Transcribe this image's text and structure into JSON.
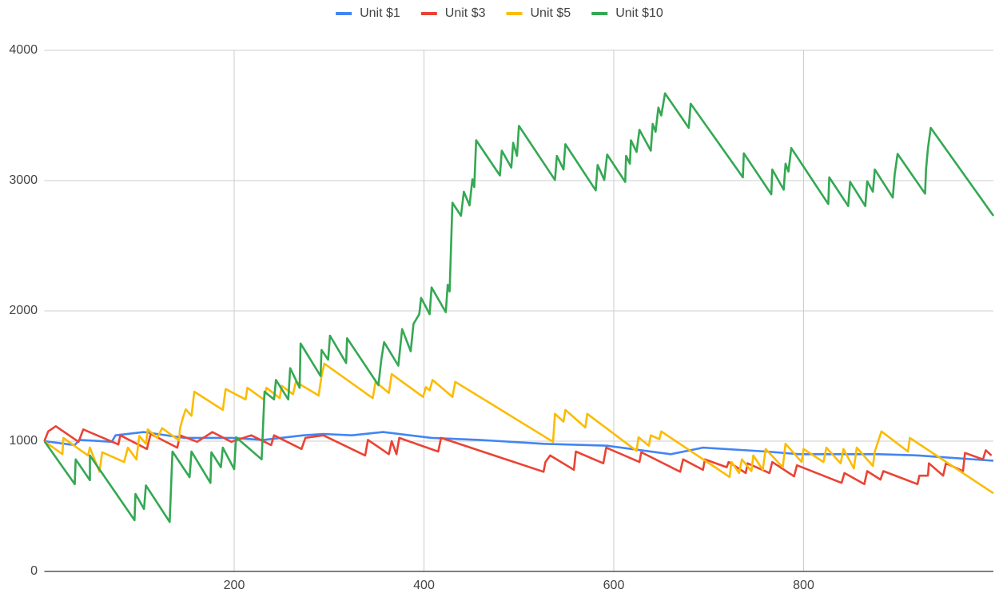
{
  "chart_data": {
    "type": "line",
    "legend": "top",
    "grid": true,
    "xlim": [
      0,
      1000
    ],
    "xticks": [
      200,
      400,
      600,
      800
    ],
    "ylim": [
      0,
      4000
    ],
    "yticks": [
      0,
      1000,
      2000,
      3000,
      4000
    ],
    "series": [
      {
        "name": "Unit $1",
        "color": "#4285f4",
        "x": [
          0,
          32,
          37,
          71,
          75,
          105,
          147,
          172,
          197,
          231,
          273,
          294,
          324,
          357,
          408,
          458,
          526,
          593,
          660,
          694,
          761,
          795,
          879,
          921,
          1000
        ],
        "values": [
          1000,
          970,
          1010,
          995,
          1045,
          1070,
          1025,
          1025,
          1025,
          1010,
          1045,
          1055,
          1045,
          1070,
          1025,
          1010,
          980,
          965,
          900,
          950,
          920,
          900,
          900,
          890,
          850
        ]
      },
      {
        "name": "Unit $3",
        "color": "#ea4335",
        "x": [
          0,
          4,
          12,
          36,
          41,
          78,
          80,
          108,
          112,
          140,
          143,
          161,
          177,
          197,
          218,
          239,
          242,
          271,
          275,
          294,
          338,
          341,
          363,
          366,
          371,
          374,
          415,
          418,
          526,
          528,
          533,
          558,
          560,
          589,
          592,
          627,
          629,
          670,
          673,
          694,
          696,
          719,
          721,
          739,
          741,
          764,
          767,
          790,
          793,
          840,
          843,
          864,
          867,
          881,
          884,
          920,
          922,
          931,
          932,
          947,
          950,
          968,
          970,
          989,
          992,
          998
        ],
        "values": [
          1000,
          1075,
          1115,
          995,
          1090,
          975,
          1045,
          940,
          1055,
          950,
          1045,
          995,
          1070,
          995,
          1045,
          970,
          1045,
          940,
          1025,
          1045,
          890,
          1010,
          900,
          1000,
          900,
          1025,
          920,
          1025,
          765,
          840,
          890,
          780,
          920,
          830,
          950,
          840,
          915,
          765,
          860,
          780,
          860,
          800,
          840,
          755,
          830,
          755,
          840,
          730,
          815,
          680,
          755,
          670,
          770,
          705,
          770,
          670,
          735,
          735,
          830,
          735,
          830,
          770,
          910,
          860,
          930,
          890
        ]
      },
      {
        "name": "Unit $5",
        "color": "#fbbc04",
        "x": [
          0,
          19,
          20,
          46,
          48,
          58,
          61,
          84,
          88,
          97,
          100,
          107,
          109,
          119,
          124,
          142,
          143,
          146,
          149,
          155,
          158,
          188,
          191,
          212,
          214,
          231,
          234,
          248,
          250,
          262,
          265,
          289,
          292,
          295,
          346,
          349,
          363,
          366,
          399,
          402,
          406,
          409,
          430,
          433,
          536,
          538,
          547,
          549,
          570,
          572,
          624,
          626,
          637,
          639,
          648,
          650,
          722,
          724,
          732,
          735,
          745,
          747,
          757,
          760,
          778,
          781,
          798,
          800,
          821,
          824,
          839,
          842,
          853,
          856,
          873,
          875,
          882,
          910,
          912,
          1000
        ],
        "values": [
          1000,
          900,
          1025,
          890,
          950,
          765,
          915,
          840,
          950,
          860,
          1040,
          980,
          1090,
          1025,
          1100,
          1005,
          1100,
          1180,
          1245,
          1195,
          1380,
          1240,
          1400,
          1320,
          1410,
          1320,
          1410,
          1330,
          1425,
          1360,
          1455,
          1350,
          1500,
          1595,
          1330,
          1455,
          1370,
          1515,
          1340,
          1415,
          1390,
          1470,
          1340,
          1455,
          995,
          1210,
          1150,
          1240,
          1105,
          1210,
          925,
          1030,
          965,
          1045,
          1015,
          1075,
          725,
          840,
          755,
          860,
          770,
          890,
          780,
          940,
          800,
          980,
          840,
          940,
          840,
          950,
          830,
          940,
          790,
          950,
          810,
          920,
          1075,
          920,
          1025,
          600
        ]
      },
      {
        "name": "Unit $10",
        "color": "#34a853",
        "x": [
          0,
          32,
          33,
          48,
          48,
          95,
          96,
          105,
          107,
          132,
          135,
          153,
          155,
          175,
          176,
          186,
          188,
          200,
          202,
          229,
          232,
          242,
          244,
          257,
          259,
          269,
          270,
          291,
          292,
          299,
          301,
          318,
          319,
          352,
          355,
          358,
          373,
          377,
          386,
          389,
          395,
          397,
          406,
          408,
          423,
          425,
          427,
          430,
          439,
          442,
          448,
          451,
          453,
          455,
          480,
          482,
          492,
          494,
          498,
          500,
          538,
          540,
          547,
          549,
          581,
          583,
          590,
          593,
          612,
          613,
          617,
          618,
          624,
          627,
          639,
          641,
          644,
          647,
          650,
          654,
          679,
          681,
          736,
          737,
          766,
          767,
          779,
          781,
          784,
          787,
          826,
          827,
          847,
          849,
          865,
          867,
          873,
          875,
          894,
          896,
          899,
          928,
          929,
          931,
          934,
          1000
        ],
        "values": [
          1000,
          670,
          860,
          700,
          890,
          393,
          595,
          480,
          660,
          380,
          920,
          724,
          920,
          680,
          915,
          800,
          950,
          785,
          1030,
          860,
          1380,
          1320,
          1470,
          1320,
          1560,
          1410,
          1750,
          1500,
          1700,
          1625,
          1810,
          1600,
          1790,
          1430,
          1625,
          1760,
          1580,
          1860,
          1690,
          1900,
          1975,
          2100,
          1975,
          2180,
          1990,
          2200,
          2150,
          2830,
          2730,
          2915,
          2810,
          3010,
          2950,
          3310,
          3040,
          3230,
          3100,
          3290,
          3190,
          3420,
          3005,
          3190,
          3085,
          3280,
          2925,
          3120,
          3005,
          3200,
          2990,
          3190,
          3130,
          3310,
          3220,
          3390,
          3230,
          3435,
          3375,
          3560,
          3500,
          3670,
          3405,
          3590,
          3025,
          3210,
          2895,
          3085,
          2930,
          3130,
          3070,
          3250,
          2820,
          3025,
          2805,
          2990,
          2805,
          2995,
          2915,
          3085,
          2870,
          3050,
          3205,
          2900,
          3085,
          3250,
          3405,
          2730
        ]
      }
    ]
  }
}
